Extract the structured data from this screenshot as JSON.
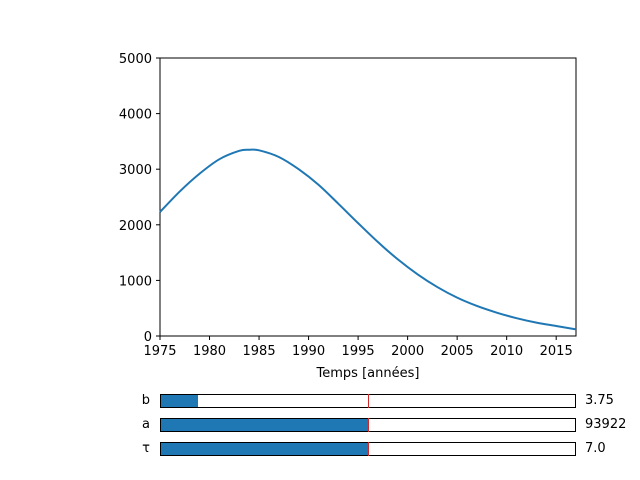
{
  "chart_data": {
    "type": "line",
    "xlabel": "Temps [années]",
    "ylabel": "",
    "xlim": [
      1975,
      2017
    ],
    "ylim": [
      0,
      5000
    ],
    "xticks": [
      "1975",
      "1980",
      "1985",
      "1990",
      "1995",
      "2000",
      "2005",
      "2010",
      "2015"
    ],
    "yticks": [
      "0",
      "1000",
      "2000",
      "3000",
      "4000",
      "5000"
    ],
    "grid": false,
    "line_color": "#1f77b4",
    "series": [
      {
        "x": [
          1975,
          1977,
          1979,
          1981,
          1983,
          1984,
          1985,
          1987,
          1989,
          1991,
          1993,
          1995,
          1997,
          1999,
          2001,
          2003,
          2005,
          2007,
          2009,
          2011,
          2013,
          2015,
          2017
        ],
        "values": [
          2230,
          2600,
          2920,
          3180,
          3330,
          3350,
          3340,
          3220,
          3000,
          2720,
          2380,
          2030,
          1690,
          1380,
          1110,
          880,
          690,
          540,
          420,
          320,
          240,
          180,
          120
        ]
      }
    ]
  },
  "sliders": [
    {
      "label": "b",
      "value_text": "3.75",
      "fill": 0.09,
      "init": 0.5
    },
    {
      "label": "a",
      "value_text": "93922",
      "fill": 0.5,
      "init": 0.5
    },
    {
      "label": "τ",
      "value_text": "7.0",
      "fill": 0.5,
      "init": 0.5
    }
  ],
  "colors": {
    "slider_fill": "#1f77b4",
    "init_marker": "#d62728"
  }
}
